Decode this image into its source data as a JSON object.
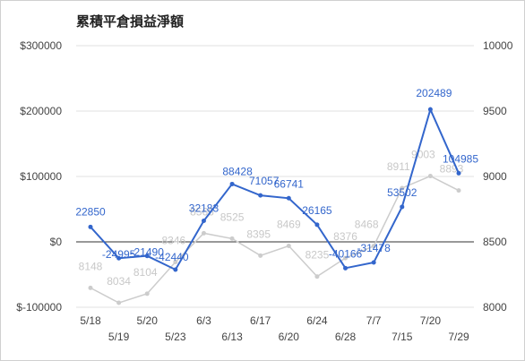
{
  "chart_data": {
    "type": "line",
    "title": "累積平倉損益淨額",
    "x": [
      "5/18",
      "5/19",
      "5/20",
      "5/23",
      "6/3",
      "6/13",
      "6/17",
      "6/20",
      "6/24",
      "6/28",
      "7/7",
      "7/15",
      "7/20",
      "7/29"
    ],
    "x_labels_top": [
      "5/18",
      "5/20",
      "6/3",
      "6/17",
      "6/24",
      "7/7",
      "7/20"
    ],
    "x_labels_bottom": [
      "5/19",
      "5/23",
      "6/13",
      "6/20",
      "6/28",
      "7/15",
      "7/29"
    ],
    "y_left_ticks": [
      "$300000",
      "$200000",
      "$100000",
      "$0",
      "$-100000"
    ],
    "y_right_ticks": [
      "10000",
      "9500",
      "9000",
      "8500",
      "8000"
    ],
    "ylim_left": [
      -100000,
      300000
    ],
    "ylim_right": [
      8000,
      10000
    ],
    "grid": true,
    "series": [
      {
        "axis": "left",
        "color": "#3366cc",
        "values": [
          22850,
          -24995,
          -21490,
          -42440,
          32183,
          88428,
          71057,
          66741,
          26165,
          -40166,
          -31478,
          53502,
          202489,
          104985
        ],
        "labels": [
          "22850",
          "-24995",
          "-21490",
          "-42440",
          "32183",
          "88428",
          "71057",
          "66741",
          "26165",
          "-40166",
          "-31478",
          "53502",
          "202489",
          "104985"
        ]
      },
      {
        "axis": "right",
        "color": "#cccccc",
        "values": [
          8148,
          8034,
          8104,
          8346,
          8566,
          8525,
          8395,
          8469,
          8235,
          8376,
          8468,
          8911,
          9003,
          8893
        ],
        "labels": [
          "8148",
          "8034",
          "8104",
          "8346",
          "8566",
          "8525",
          "8395",
          "8469",
          "8235",
          "8376",
          "8468",
          "8911",
          "9003",
          "8893"
        ]
      }
    ]
  }
}
